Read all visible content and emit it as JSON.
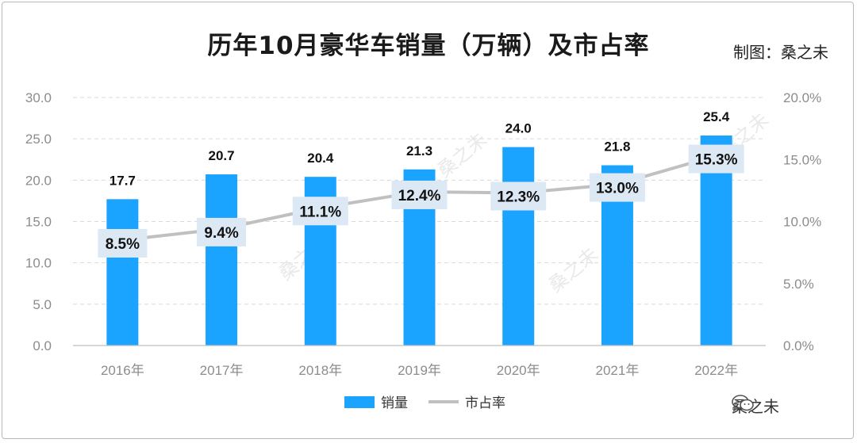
{
  "title": "历年10月豪华车销量（万辆）及市占率",
  "credit": "制图：桑之未",
  "watermark": "桑之未",
  "footer": {
    "account": "桑之未",
    "icon": "wechat-icon"
  },
  "colors": {
    "bar": "#1aa3ff",
    "line": "#c0c0c0",
    "label_box": "#dce9f5",
    "grid": "#d9d9d9"
  },
  "chart_data": {
    "type": "bar",
    "categories": [
      "2016年",
      "2017年",
      "2018年",
      "2019年",
      "2020年",
      "2021年",
      "2022年"
    ],
    "series": [
      {
        "name": "销量",
        "type": "bar",
        "axis": "left",
        "values": [
          17.7,
          20.7,
          20.4,
          21.3,
          24.0,
          21.8,
          25.4
        ],
        "labels": [
          "17.7",
          "20.7",
          "20.4",
          "21.3",
          "24.0",
          "21.8",
          "25.4"
        ]
      },
      {
        "name": "市占率",
        "type": "line",
        "axis": "right",
        "values": [
          8.5,
          9.4,
          11.1,
          12.4,
          12.3,
          13.0,
          15.3
        ],
        "labels": [
          "8.5%",
          "9.4%",
          "11.1%",
          "12.4%",
          "12.3%",
          "13.0%",
          "15.3%"
        ]
      }
    ],
    "y_left": {
      "min": 0,
      "max": 30,
      "ticks": [
        "0.0",
        "5.0",
        "10.0",
        "15.0",
        "20.0",
        "25.0",
        "30.0"
      ]
    },
    "y_right": {
      "min": 0,
      "max": 20,
      "ticks": [
        "0.0%",
        "5.0%",
        "10.0%",
        "15.0%",
        "20.0%"
      ]
    },
    "grid": true,
    "legend_position": "bottom"
  }
}
